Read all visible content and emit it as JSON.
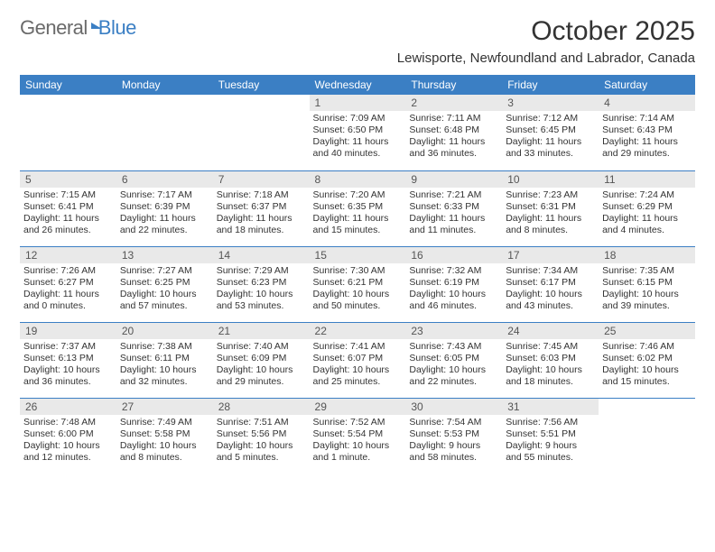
{
  "brand": {
    "name1": "General",
    "name2": "Blue"
  },
  "title": "October 2025",
  "location": "Lewisporte, Newfoundland and Labrador, Canada",
  "colors": {
    "header_bg": "#3b7fc4",
    "header_text": "#ffffff",
    "daybar_bg": "#e9e9e9",
    "rule": "#3b7fc4",
    "text": "#333333"
  },
  "daysOfWeek": [
    "Sunday",
    "Monday",
    "Tuesday",
    "Wednesday",
    "Thursday",
    "Friday",
    "Saturday"
  ],
  "weeks": [
    [
      null,
      null,
      null,
      {
        "d": "1",
        "sunrise": "7:09 AM",
        "sunset": "6:50 PM",
        "daylight": "11 hours and 40 minutes."
      },
      {
        "d": "2",
        "sunrise": "7:11 AM",
        "sunset": "6:48 PM",
        "daylight": "11 hours and 36 minutes."
      },
      {
        "d": "3",
        "sunrise": "7:12 AM",
        "sunset": "6:45 PM",
        "daylight": "11 hours and 33 minutes."
      },
      {
        "d": "4",
        "sunrise": "7:14 AM",
        "sunset": "6:43 PM",
        "daylight": "11 hours and 29 minutes."
      }
    ],
    [
      {
        "d": "5",
        "sunrise": "7:15 AM",
        "sunset": "6:41 PM",
        "daylight": "11 hours and 26 minutes."
      },
      {
        "d": "6",
        "sunrise": "7:17 AM",
        "sunset": "6:39 PM",
        "daylight": "11 hours and 22 minutes."
      },
      {
        "d": "7",
        "sunrise": "7:18 AM",
        "sunset": "6:37 PM",
        "daylight": "11 hours and 18 minutes."
      },
      {
        "d": "8",
        "sunrise": "7:20 AM",
        "sunset": "6:35 PM",
        "daylight": "11 hours and 15 minutes."
      },
      {
        "d": "9",
        "sunrise": "7:21 AM",
        "sunset": "6:33 PM",
        "daylight": "11 hours and 11 minutes."
      },
      {
        "d": "10",
        "sunrise": "7:23 AM",
        "sunset": "6:31 PM",
        "daylight": "11 hours and 8 minutes."
      },
      {
        "d": "11",
        "sunrise": "7:24 AM",
        "sunset": "6:29 PM",
        "daylight": "11 hours and 4 minutes."
      }
    ],
    [
      {
        "d": "12",
        "sunrise": "7:26 AM",
        "sunset": "6:27 PM",
        "daylight": "11 hours and 0 minutes."
      },
      {
        "d": "13",
        "sunrise": "7:27 AM",
        "sunset": "6:25 PM",
        "daylight": "10 hours and 57 minutes."
      },
      {
        "d": "14",
        "sunrise": "7:29 AM",
        "sunset": "6:23 PM",
        "daylight": "10 hours and 53 minutes."
      },
      {
        "d": "15",
        "sunrise": "7:30 AM",
        "sunset": "6:21 PM",
        "daylight": "10 hours and 50 minutes."
      },
      {
        "d": "16",
        "sunrise": "7:32 AM",
        "sunset": "6:19 PM",
        "daylight": "10 hours and 46 minutes."
      },
      {
        "d": "17",
        "sunrise": "7:34 AM",
        "sunset": "6:17 PM",
        "daylight": "10 hours and 43 minutes."
      },
      {
        "d": "18",
        "sunrise": "7:35 AM",
        "sunset": "6:15 PM",
        "daylight": "10 hours and 39 minutes."
      }
    ],
    [
      {
        "d": "19",
        "sunrise": "7:37 AM",
        "sunset": "6:13 PM",
        "daylight": "10 hours and 36 minutes."
      },
      {
        "d": "20",
        "sunrise": "7:38 AM",
        "sunset": "6:11 PM",
        "daylight": "10 hours and 32 minutes."
      },
      {
        "d": "21",
        "sunrise": "7:40 AM",
        "sunset": "6:09 PM",
        "daylight": "10 hours and 29 minutes."
      },
      {
        "d": "22",
        "sunrise": "7:41 AM",
        "sunset": "6:07 PM",
        "daylight": "10 hours and 25 minutes."
      },
      {
        "d": "23",
        "sunrise": "7:43 AM",
        "sunset": "6:05 PM",
        "daylight": "10 hours and 22 minutes."
      },
      {
        "d": "24",
        "sunrise": "7:45 AM",
        "sunset": "6:03 PM",
        "daylight": "10 hours and 18 minutes."
      },
      {
        "d": "25",
        "sunrise": "7:46 AM",
        "sunset": "6:02 PM",
        "daylight": "10 hours and 15 minutes."
      }
    ],
    [
      {
        "d": "26",
        "sunrise": "7:48 AM",
        "sunset": "6:00 PM",
        "daylight": "10 hours and 12 minutes."
      },
      {
        "d": "27",
        "sunrise": "7:49 AM",
        "sunset": "5:58 PM",
        "daylight": "10 hours and 8 minutes."
      },
      {
        "d": "28",
        "sunrise": "7:51 AM",
        "sunset": "5:56 PM",
        "daylight": "10 hours and 5 minutes."
      },
      {
        "d": "29",
        "sunrise": "7:52 AM",
        "sunset": "5:54 PM",
        "daylight": "10 hours and 1 minute."
      },
      {
        "d": "30",
        "sunrise": "7:54 AM",
        "sunset": "5:53 PM",
        "daylight": "9 hours and 58 minutes."
      },
      {
        "d": "31",
        "sunrise": "7:56 AM",
        "sunset": "5:51 PM",
        "daylight": "9 hours and 55 minutes."
      },
      null
    ]
  ],
  "labels": {
    "sunrise": "Sunrise: ",
    "sunset": "Sunset: ",
    "daylight": "Daylight: "
  }
}
